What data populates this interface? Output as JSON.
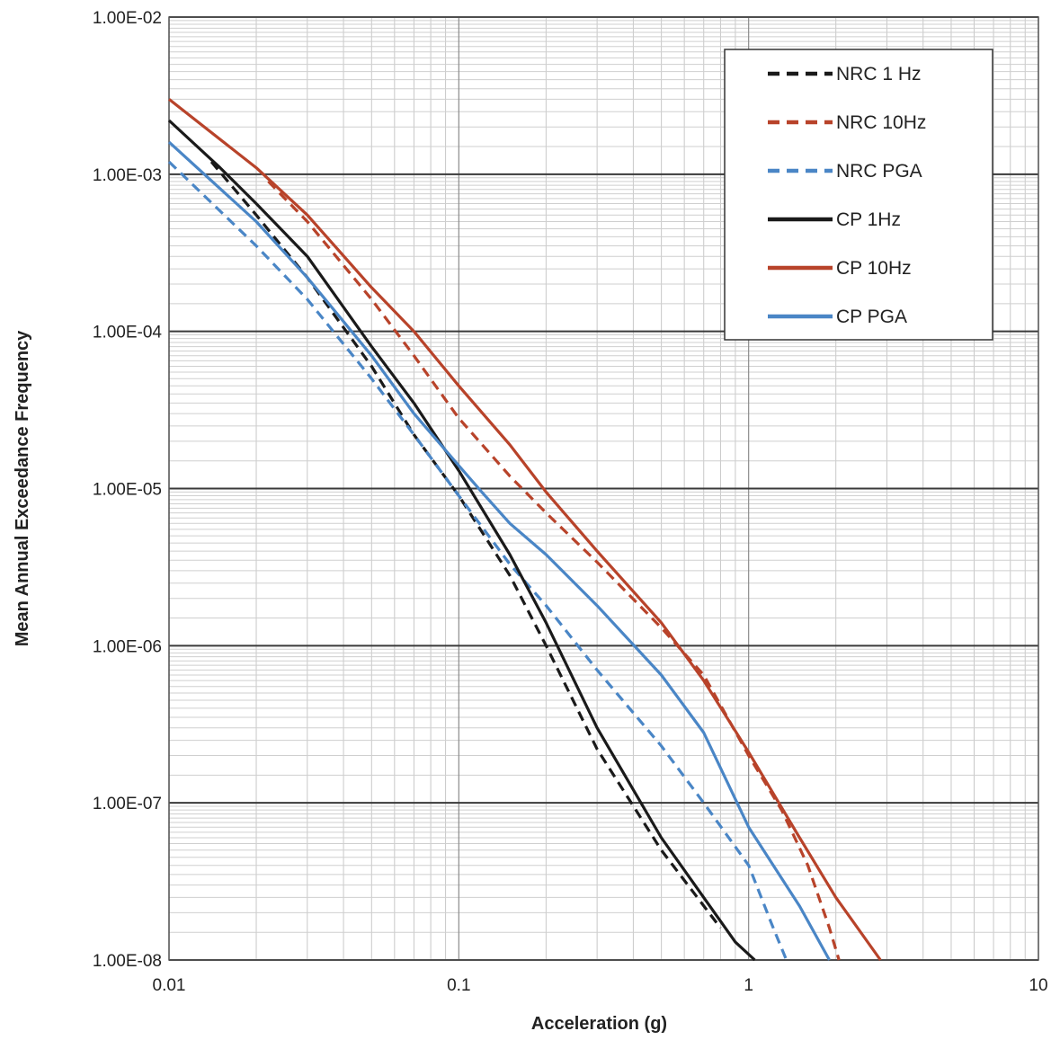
{
  "chart_data": {
    "type": "line",
    "title": "",
    "xlabel": "Acceleration (g)",
    "ylabel": "Mean Annual Exceedance Frequency",
    "x_scale": "log",
    "y_scale": "log",
    "xlim": [
      0.01,
      10
    ],
    "ylim": [
      1e-08,
      0.01
    ],
    "x_ticks": [
      0.01,
      0.1,
      1,
      10
    ],
    "x_tick_labels": [
      "0.01",
      "0.1",
      "1",
      "10"
    ],
    "y_ticks": [
      1e-08,
      1e-07,
      1e-06,
      1e-05,
      0.0001,
      0.001,
      0.01
    ],
    "y_tick_labels": [
      "1.00E-08",
      "1.00E-07",
      "1.00E-06",
      "1.00E-05",
      "1.00E-04",
      "1.00E-03",
      "1.00E-02"
    ],
    "grid": true,
    "legend_position": "top-right",
    "series": [
      {
        "name": "NRC 1 Hz",
        "color": "#1a1a1a",
        "dash": true,
        "points": [
          [
            0.014,
            0.0012
          ],
          [
            0.02,
            0.00055
          ],
          [
            0.03,
            0.00022
          ],
          [
            0.05,
            6e-05
          ],
          [
            0.07,
            2.2e-05
          ],
          [
            0.1,
            9e-06
          ],
          [
            0.15,
            2.8e-06
          ],
          [
            0.2,
            1e-06
          ],
          [
            0.3,
            2.2e-07
          ],
          [
            0.5,
            5e-08
          ],
          [
            0.8,
            1.6e-08
          ]
        ]
      },
      {
        "name": "NRC 10Hz",
        "color": "#b8432a",
        "dash": true,
        "points": [
          [
            0.022,
            0.0009
          ],
          [
            0.03,
            0.0005
          ],
          [
            0.05,
            0.00016
          ],
          [
            0.07,
            7e-05
          ],
          [
            0.1,
            2.8e-05
          ],
          [
            0.15,
            1.2e-05
          ],
          [
            0.2,
            7e-06
          ],
          [
            0.3,
            3.4e-06
          ],
          [
            0.5,
            1.3e-06
          ],
          [
            0.7,
            6.5e-07
          ],
          [
            1.0,
            2e-07
          ],
          [
            1.3,
            9e-08
          ],
          [
            1.6,
            4e-08
          ],
          [
            1.9,
            1.6e-08
          ],
          [
            2.05,
            1e-08
          ]
        ]
      },
      {
        "name": "NRC PGA",
        "color": "#4a86c6",
        "dash": true,
        "points": [
          [
            0.01,
            0.0012
          ],
          [
            0.02,
            0.00035
          ],
          [
            0.03,
            0.00016
          ],
          [
            0.05,
            5e-05
          ],
          [
            0.07,
            2.2e-05
          ],
          [
            0.1,
            9e-06
          ],
          [
            0.15,
            3.3e-06
          ],
          [
            0.2,
            1.8e-06
          ],
          [
            0.3,
            7e-07
          ],
          [
            0.5,
            2.3e-07
          ],
          [
            0.7,
            1e-07
          ],
          [
            1.0,
            4e-08
          ],
          [
            1.2,
            1.7e-08
          ],
          [
            1.35,
            1e-08
          ]
        ]
      },
      {
        "name": "CP 1Hz",
        "color": "#1a1a1a",
        "dash": false,
        "points": [
          [
            0.01,
            0.0022
          ],
          [
            0.015,
            0.0011
          ],
          [
            0.02,
            0.00065
          ],
          [
            0.03,
            0.0003
          ],
          [
            0.05,
            8e-05
          ],
          [
            0.07,
            3.5e-05
          ],
          [
            0.1,
            1.3e-05
          ],
          [
            0.15,
            3.8e-06
          ],
          [
            0.2,
            1.4e-06
          ],
          [
            0.3,
            3e-07
          ],
          [
            0.5,
            6e-08
          ],
          [
            0.7,
            2.5e-08
          ],
          [
            0.9,
            1.3e-08
          ],
          [
            1.05,
            1e-08
          ]
        ]
      },
      {
        "name": "CP 10Hz",
        "color": "#b8432a",
        "dash": false,
        "points": [
          [
            0.01,
            0.003
          ],
          [
            0.02,
            0.0011
          ],
          [
            0.03,
            0.00055
          ],
          [
            0.05,
            0.00019
          ],
          [
            0.07,
            0.0001
          ],
          [
            0.1,
            4.5e-05
          ],
          [
            0.15,
            1.9e-05
          ],
          [
            0.2,
            9.5e-06
          ],
          [
            0.3,
            4e-06
          ],
          [
            0.5,
            1.4e-06
          ],
          [
            0.7,
            6e-07
          ],
          [
            1.0,
            2.1e-07
          ],
          [
            1.5,
            6e-08
          ],
          [
            2.0,
            2.5e-08
          ],
          [
            2.85,
            1e-08
          ]
        ]
      },
      {
        "name": "CP PGA",
        "color": "#4a86c6",
        "dash": false,
        "points": [
          [
            0.01,
            0.0016
          ],
          [
            0.02,
            0.0005
          ],
          [
            0.03,
            0.00022
          ],
          [
            0.05,
            7e-05
          ],
          [
            0.07,
            3e-05
          ],
          [
            0.1,
            1.4e-05
          ],
          [
            0.12,
            9.5e-06
          ],
          [
            0.15,
            6e-06
          ],
          [
            0.2,
            3.8e-06
          ],
          [
            0.3,
            1.8e-06
          ],
          [
            0.5,
            6.5e-07
          ],
          [
            0.7,
            2.8e-07
          ],
          [
            1.0,
            7e-08
          ],
          [
            1.5,
            2.2e-08
          ],
          [
            1.9,
            1e-08
          ]
        ]
      }
    ]
  }
}
